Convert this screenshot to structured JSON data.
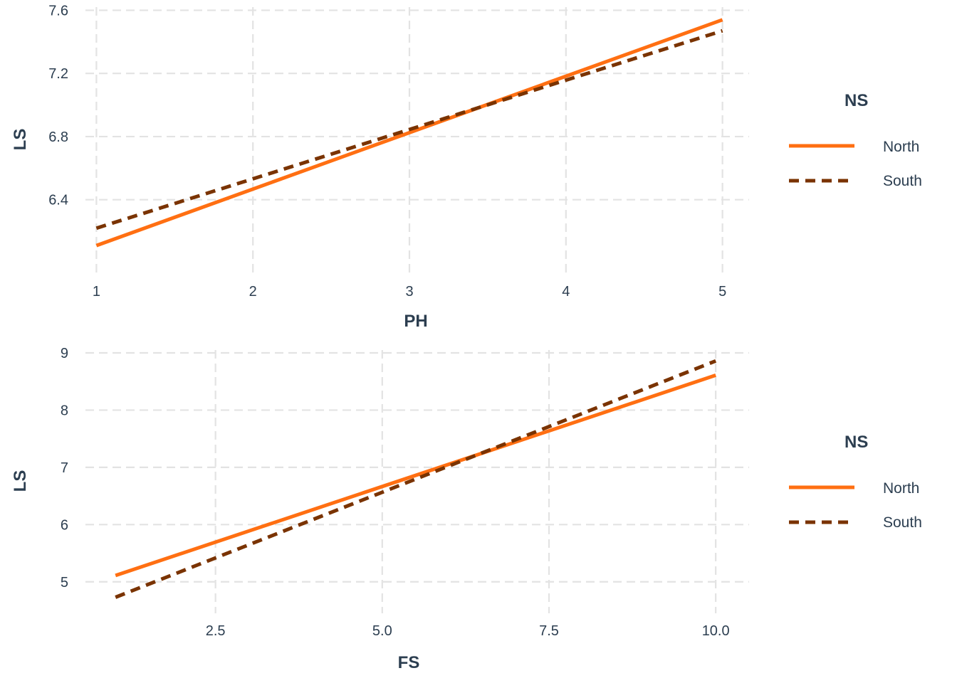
{
  "chart_data": [
    {
      "type": "line",
      "title": "",
      "xlabel": "PH",
      "ylabel": "LS",
      "xlim": [
        0.93,
        5.17
      ],
      "ylim": [
        5.93,
        7.62
      ],
      "xticks": [
        1,
        2,
        3,
        4,
        5
      ],
      "xtick_labels": [
        "1",
        "2",
        "3",
        "4",
        "5"
      ],
      "yticks": [
        6.4,
        6.8,
        7.2,
        7.6
      ],
      "ytick_labels": [
        "6.4",
        "6.8",
        "7.2",
        "7.6"
      ],
      "grid": true,
      "legend": {
        "title": "NS",
        "position": "right"
      },
      "series": [
        {
          "name": "North",
          "color": "#ff6f12",
          "style": "solid",
          "x": [
            1,
            5
          ],
          "y": [
            6.11,
            7.54
          ]
        },
        {
          "name": "South",
          "color": "#7a3300",
          "style": "dashed",
          "x": [
            1,
            5
          ],
          "y": [
            6.22,
            7.47
          ]
        }
      ]
    },
    {
      "type": "line",
      "title": "",
      "xlabel": "FS",
      "ylabel": "LS",
      "xlim": [
        0.55,
        10.5
      ],
      "ylim": [
        4.45,
        9.05
      ],
      "xticks": [
        2.5,
        5.0,
        7.5,
        10.0
      ],
      "xtick_labels": [
        "2.5",
        "5.0",
        "7.5",
        "10.0"
      ],
      "yticks": [
        5,
        6,
        7,
        8,
        9
      ],
      "ytick_labels": [
        "5",
        "6",
        "7",
        "8",
        "9"
      ],
      "grid": true,
      "legend": {
        "title": "NS",
        "position": "right"
      },
      "series": [
        {
          "name": "North",
          "color": "#ff6f12",
          "style": "solid",
          "x": [
            1,
            10
          ],
          "y": [
            5.11,
            8.61
          ]
        },
        {
          "name": "South",
          "color": "#7a3300",
          "style": "dashed",
          "x": [
            1,
            10
          ],
          "y": [
            4.73,
            8.86
          ]
        }
      ]
    }
  ]
}
